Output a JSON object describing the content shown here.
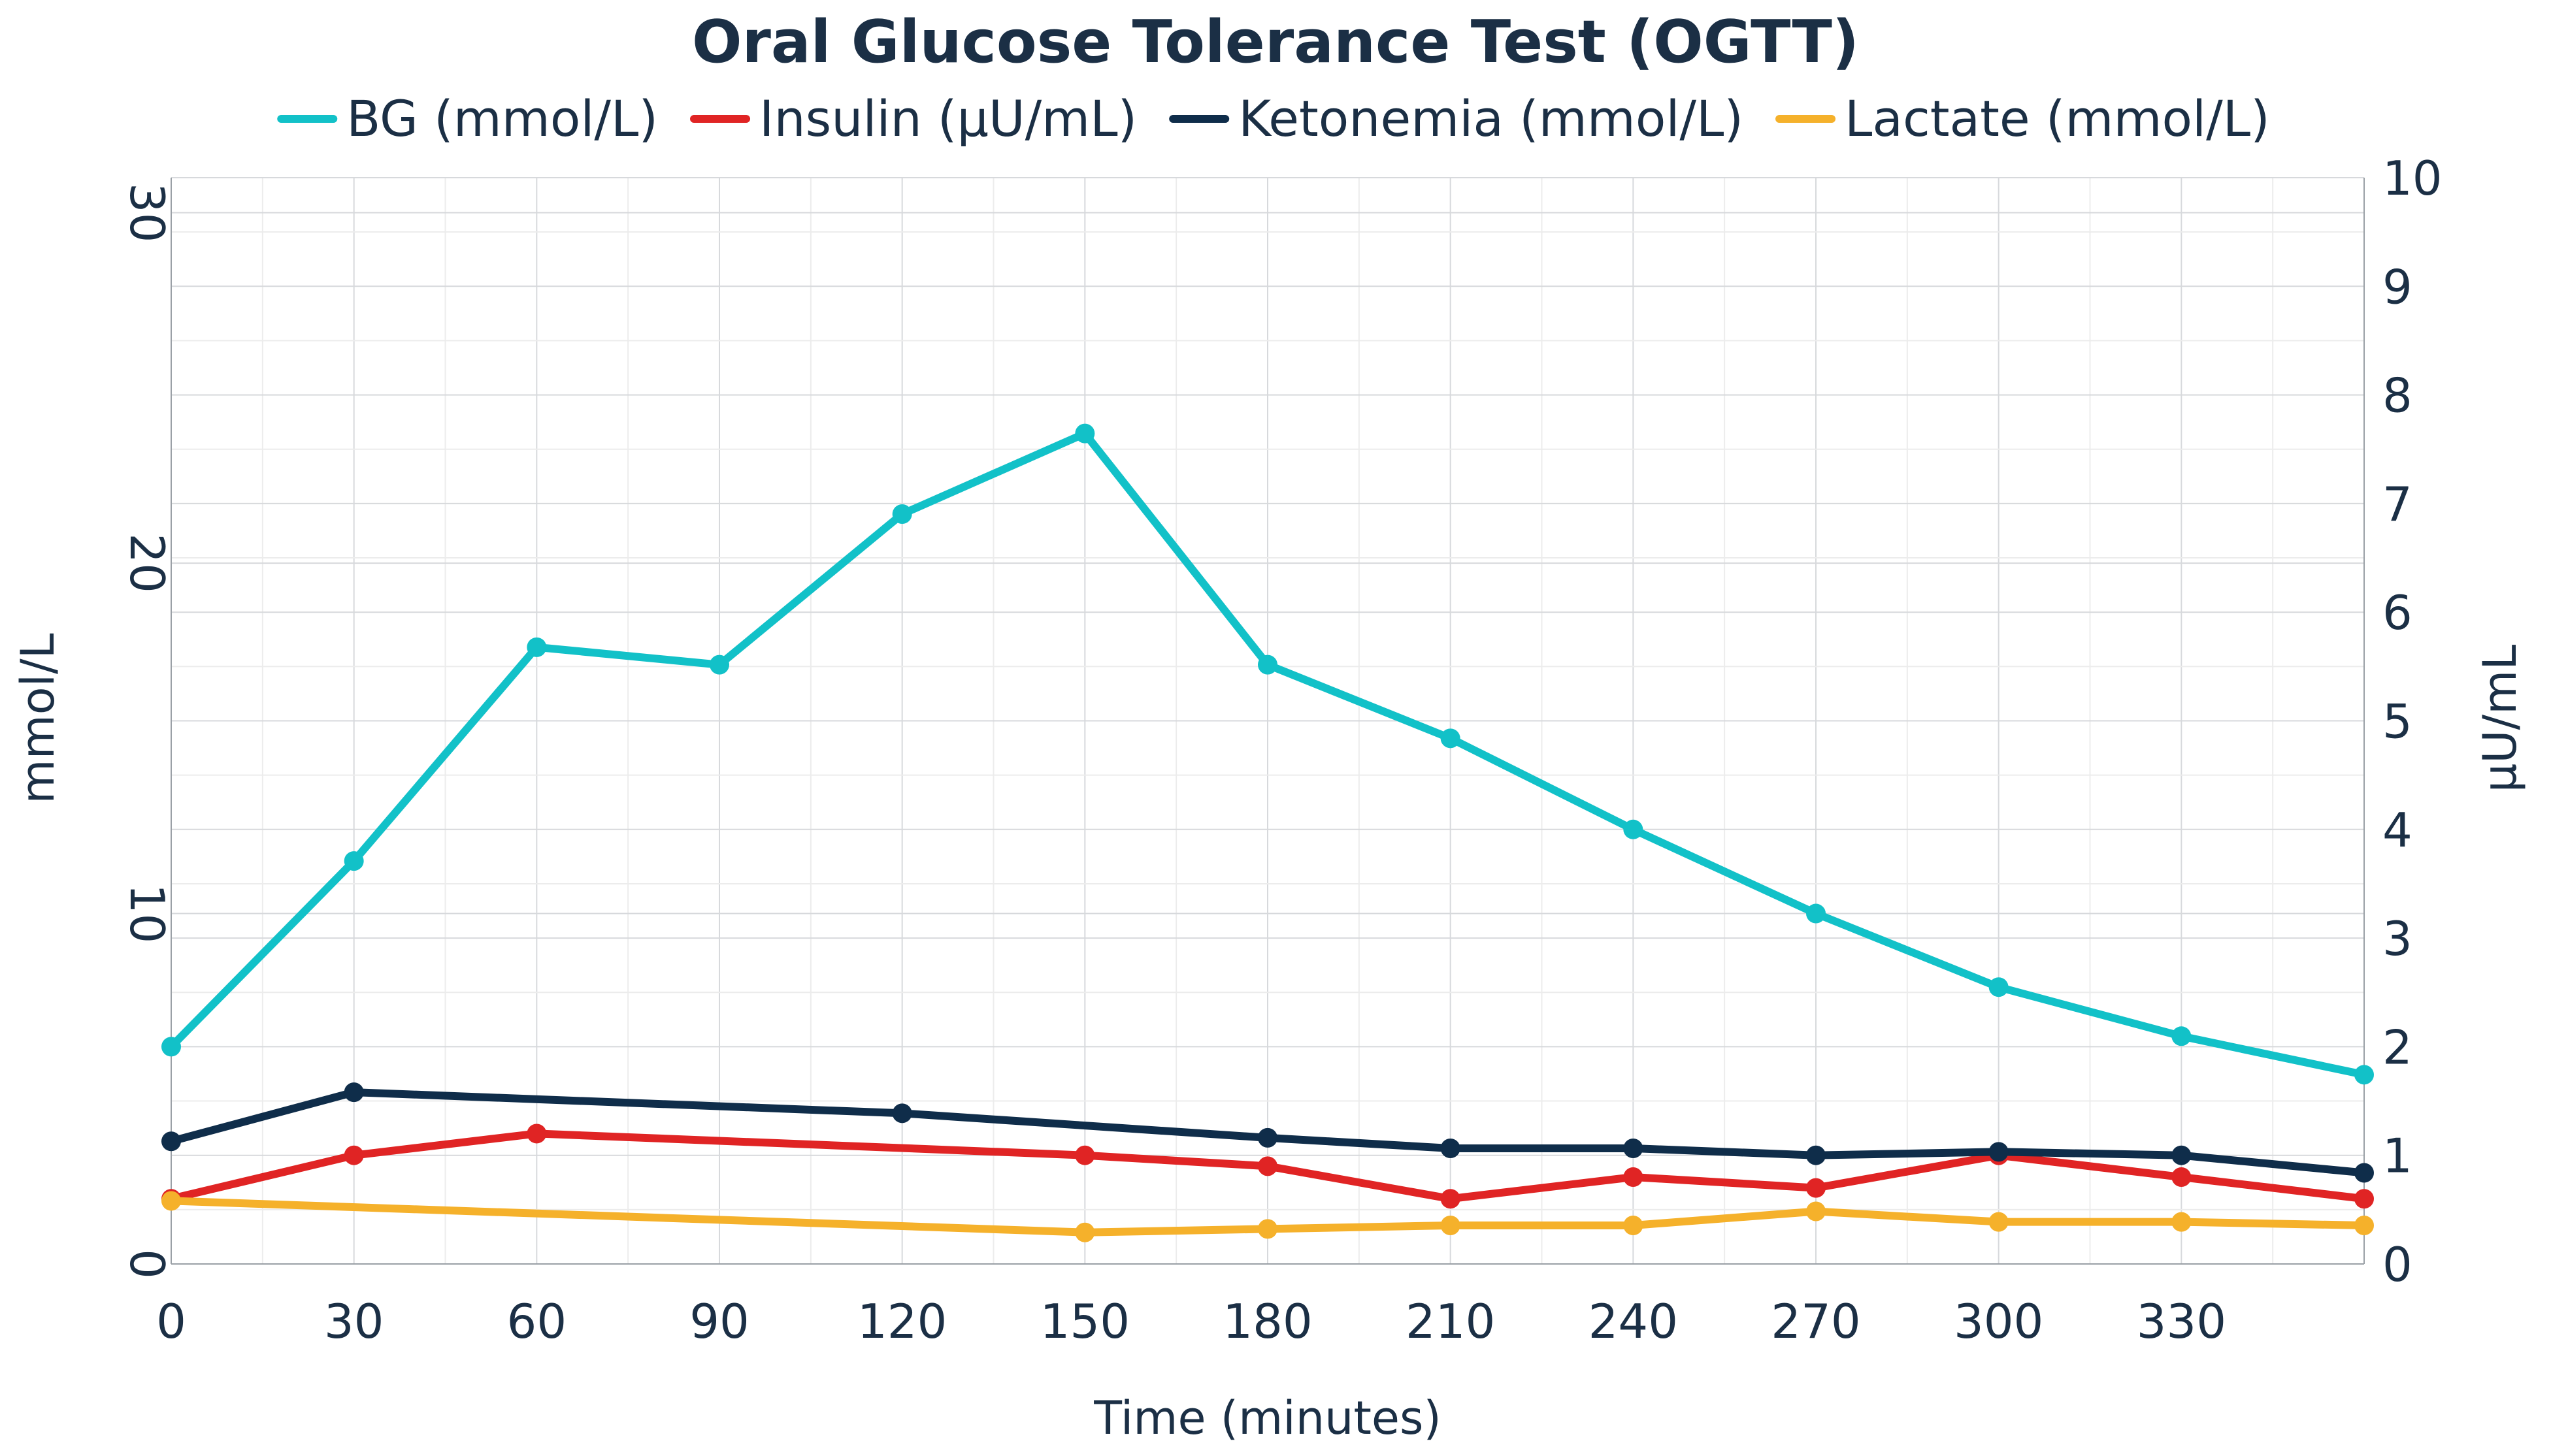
{
  "chart_data": {
    "type": "line",
    "title": "Oral Glucose Tolerance Test (OGTT)",
    "xlabel": "Time (minutes)",
    "ylabel_left": "mmol/L",
    "ylabel_right": "µU/mL",
    "x": [
      0,
      30,
      60,
      90,
      120,
      150,
      180,
      210,
      240,
      270,
      300,
      330,
      360
    ],
    "xlim": [
      0,
      360
    ],
    "xticks": [
      "0",
      "30",
      "60",
      "90",
      "120",
      "150",
      "180",
      "210",
      "240",
      "270",
      "300",
      "330"
    ],
    "ylim_left": [
      0,
      31
    ],
    "yticks_left": [
      "0",
      "10",
      "20",
      "30"
    ],
    "ylim_right": [
      0,
      10
    ],
    "yticks_right": [
      "0",
      "1",
      "2",
      "3",
      "4",
      "5",
      "6",
      "7",
      "8",
      "9",
      "10"
    ],
    "grid": true,
    "legend_position": "top",
    "series": [
      {
        "name": "BG (mmol/L)",
        "color": "#12c1c8",
        "axis": "left",
        "values": [
          6.2,
          11.5,
          17.6,
          17.1,
          21.4,
          23.7,
          17.1,
          15.0,
          12.4,
          10.0,
          7.9,
          6.5,
          5.4
        ],
        "markers": [
          true,
          true,
          true,
          true,
          true,
          true,
          true,
          true,
          true,
          true,
          true,
          true,
          true
        ]
      },
      {
        "name": "Insulin (µU/mL)",
        "color": "#e02424",
        "axis": "right",
        "values": [
          0.6,
          1.0,
          1.2,
          null,
          null,
          1.0,
          0.9,
          0.6,
          0.8,
          0.7,
          1.0,
          0.8,
          0.6
        ],
        "markers": [
          true,
          true,
          true,
          false,
          false,
          true,
          true,
          true,
          true,
          true,
          true,
          true,
          true
        ]
      },
      {
        "name": "Ketonemia (mmol/L)",
        "color": "#0f2d4a",
        "axis": "left",
        "values": [
          3.5,
          4.9,
          null,
          null,
          4.3,
          null,
          3.6,
          3.3,
          3.3,
          3.1,
          3.2,
          3.1,
          2.6
        ],
        "markers": [
          true,
          true,
          false,
          false,
          true,
          false,
          true,
          true,
          true,
          true,
          true,
          true,
          true
        ]
      },
      {
        "name": "Lactate (mmol/L)",
        "color": "#f5b12b",
        "axis": "left",
        "values": [
          1.8,
          null,
          null,
          null,
          null,
          0.9,
          1.0,
          1.1,
          1.1,
          1.5,
          1.2,
          1.2,
          1.1
        ],
        "markers": [
          true,
          false,
          false,
          false,
          false,
          true,
          true,
          true,
          true,
          true,
          true,
          true,
          true
        ]
      }
    ]
  }
}
